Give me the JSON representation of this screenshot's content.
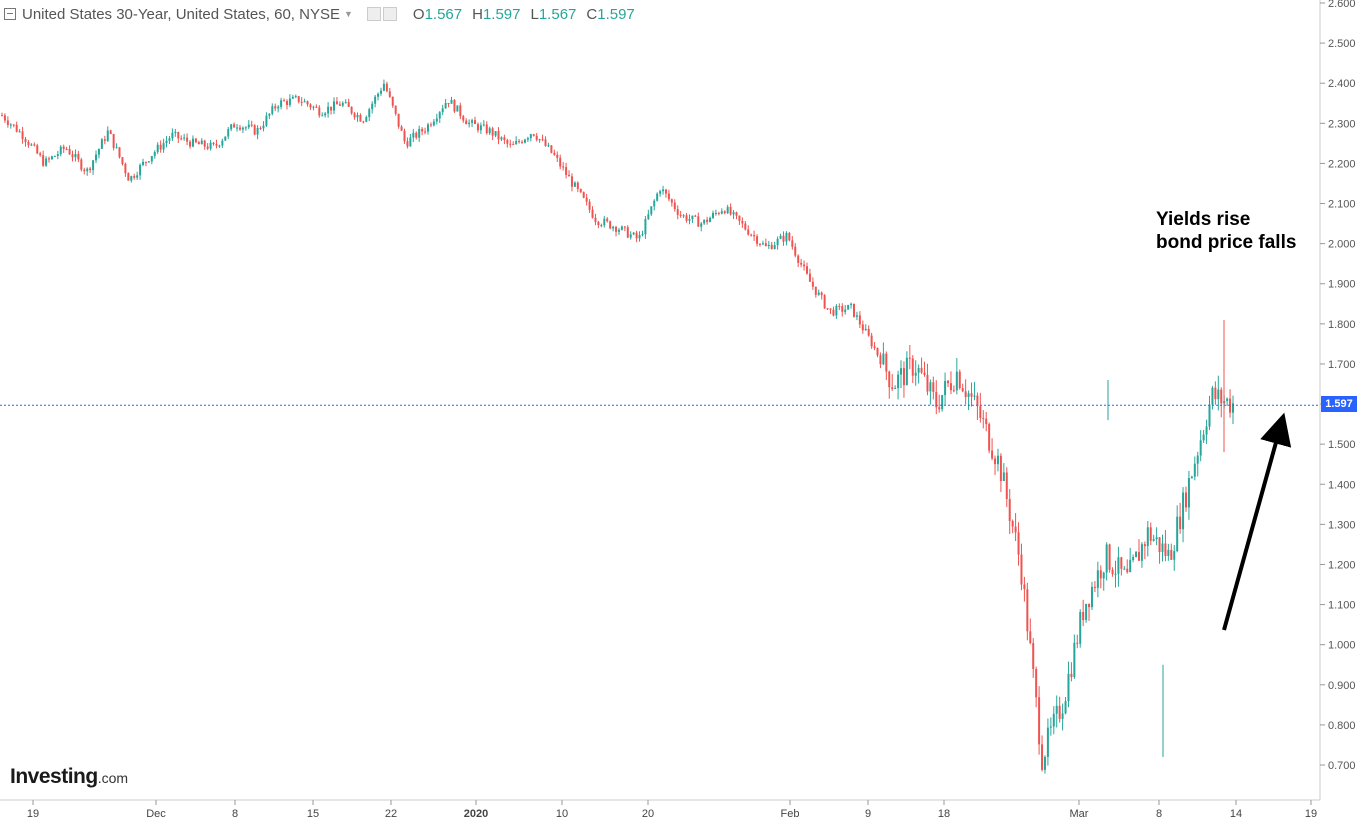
{
  "legend": {
    "title": "United States 30-Year, United States, 60, NYSE",
    "o_label": "O",
    "o_value": "1.567",
    "h_label": "H",
    "h_value": "1.597",
    "l_label": "L",
    "l_value": "1.567",
    "c_label": "C",
    "c_value": "1.597"
  },
  "annotation": {
    "line1": "Yields rise",
    "line2": "bond price falls"
  },
  "logo": {
    "main": "Investing",
    "suffix": ".com"
  },
  "last_price_label": "1.597",
  "colors": {
    "up": "#26a69a",
    "down": "#ef5350",
    "line": "#2962ff",
    "grid": "#e0e0e0"
  },
  "chart_data": {
    "type": "candlestick",
    "ylim": [
      0.68,
      2.6
    ],
    "y_ticks": [
      "0.700",
      "0.800",
      "0.900",
      "1.000",
      "1.100",
      "1.200",
      "1.300",
      "1.400",
      "1.500",
      "1.600",
      "1.700",
      "1.800",
      "1.900",
      "2.000",
      "2.100",
      "2.200",
      "2.300",
      "2.400",
      "2.500",
      "2.600"
    ],
    "x_ticks": [
      "19",
      "Dec",
      "8",
      "15",
      "22",
      "2020",
      "10",
      "20",
      "Feb",
      "9",
      "18",
      "Mar",
      "8",
      "14",
      "19"
    ],
    "last_price": 1.597,
    "close_path": [
      [
        "19",
        2.32
      ],
      [
        "",
        2.27
      ],
      [
        "",
        2.2
      ],
      [
        "",
        2.24
      ],
      [
        "Dec",
        2.18
      ],
      [
        "",
        2.28
      ],
      [
        "",
        2.16
      ],
      [
        "",
        2.22
      ],
      [
        "8",
        2.27
      ],
      [
        "",
        2.25
      ],
      [
        "",
        2.24
      ],
      [
        "15",
        2.3
      ],
      [
        "",
        2.28
      ],
      [
        "",
        2.35
      ],
      [
        "22",
        2.36
      ],
      [
        "",
        2.33
      ],
      [
        "",
        2.35
      ],
      [
        "",
        2.31
      ],
      [
        "2020",
        2.4
      ],
      [
        "",
        2.25
      ],
      [
        "",
        2.29
      ],
      [
        "",
        2.36
      ],
      [
        "10",
        2.3
      ],
      [
        "",
        2.28
      ],
      [
        "",
        2.24
      ],
      [
        "20",
        2.28
      ],
      [
        "",
        2.22
      ],
      [
        "",
        2.14
      ],
      [
        "",
        2.06
      ],
      [
        "",
        2.04
      ],
      [
        "Feb",
        2.01
      ],
      [
        "",
        2.14
      ],
      [
        "",
        2.07
      ],
      [
        "9",
        2.05
      ],
      [
        "",
        2.09
      ],
      [
        "",
        2.04
      ],
      [
        "18",
        1.99
      ],
      [
        "",
        2.02
      ],
      [
        "",
        1.91
      ],
      [
        "",
        1.83
      ],
      [
        "",
        1.84
      ],
      [
        "",
        1.75
      ],
      [
        "",
        1.65
      ],
      [
        "Mar",
        1.7
      ],
      [
        "",
        1.6
      ],
      [
        "",
        1.68
      ],
      [
        "",
        1.58
      ],
      [
        "",
        1.45
      ],
      [
        "",
        1.2
      ],
      [
        "",
        0.72
      ],
      [
        "8",
        0.86
      ],
      [
        "",
        1.1
      ],
      [
        "",
        1.22
      ],
      [
        "",
        1.16
      ],
      [
        "",
        1.28
      ],
      [
        "",
        1.22
      ],
      [
        "",
        1.42
      ],
      [
        "",
        1.62
      ],
      [
        "14",
        1.6
      ]
    ]
  }
}
